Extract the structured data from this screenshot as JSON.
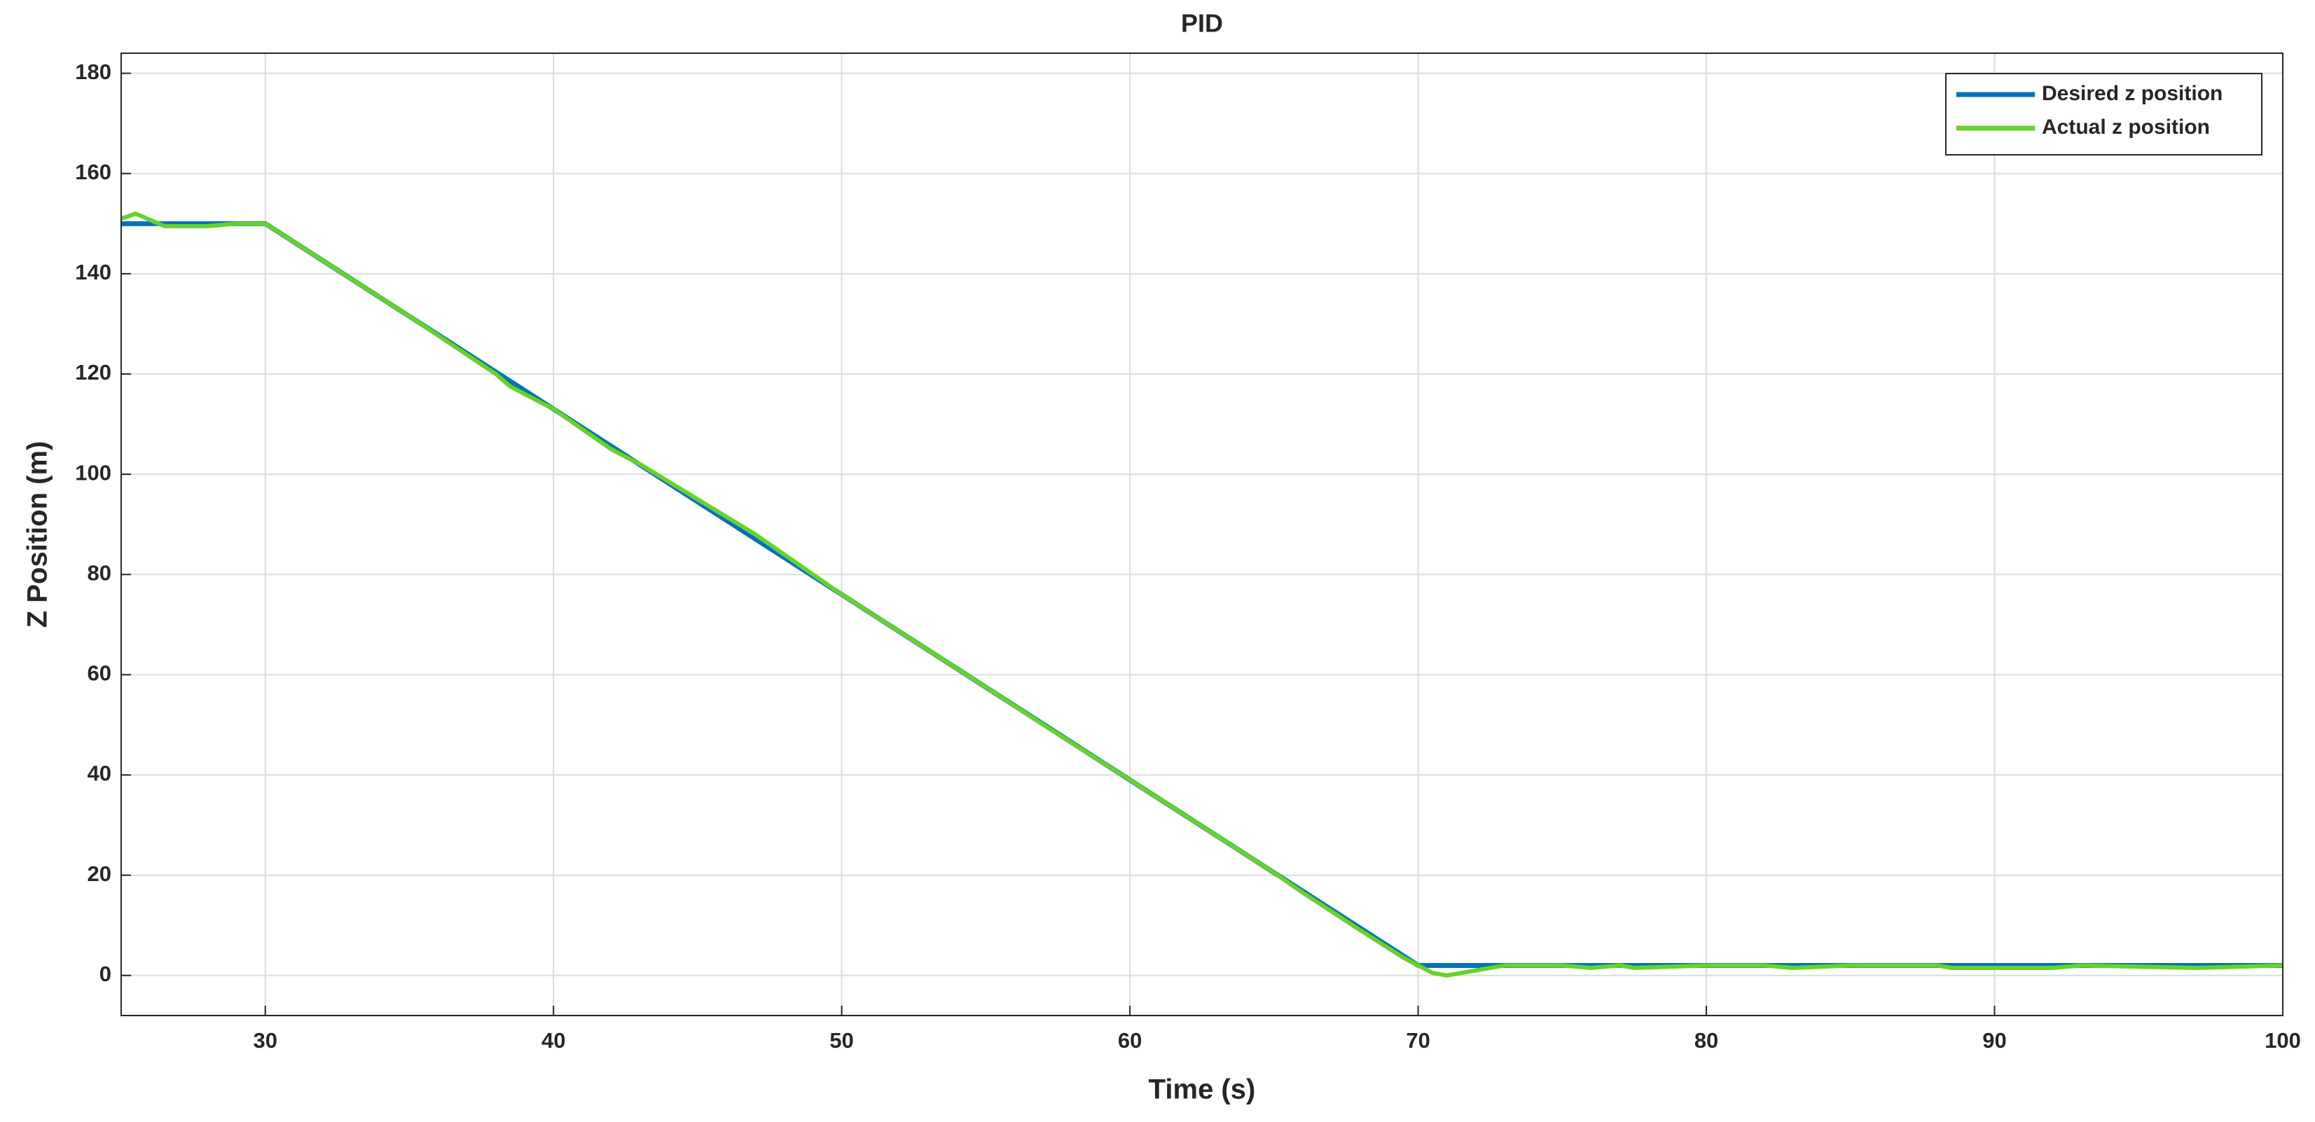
{
  "chart_data": {
    "type": "line",
    "title": "PID",
    "x_label": "Time (s)",
    "y_label": "Z Position (m)",
    "xlim": [
      25,
      100
    ],
    "xticks": [
      30,
      40,
      50,
      60,
      70,
      80,
      90,
      100
    ],
    "ylim": [
      -8,
      184
    ],
    "yticks": [
      0,
      20,
      40,
      60,
      80,
      100,
      120,
      140,
      160,
      180
    ],
    "grid": true,
    "legend": "upper right",
    "series": [
      {
        "name": "Desired z position",
        "color": "#0072bd",
        "x": [
          25,
          30,
          70,
          100
        ],
        "values": [
          150,
          150,
          2,
          2
        ]
      },
      {
        "name": "Actual z position",
        "color": "#66d22a",
        "x": [
          25,
          25.5,
          26.5,
          28,
          29,
          30,
          35,
          38,
          38.5,
          40,
          42,
          43,
          47,
          50,
          55,
          57,
          60,
          65,
          66,
          68,
          69.5,
          70.5,
          71,
          72,
          73,
          75,
          76,
          77,
          77.5,
          80,
          82,
          83,
          85,
          88,
          88.5,
          92,
          93,
          97,
          100
        ],
        "values": [
          151,
          152,
          149.5,
          149.5,
          150,
          150,
          131.5,
          120,
          117.5,
          113,
          105,
          102,
          88,
          76,
          57.5,
          50,
          39,
          20.5,
          16.5,
          9,
          3.5,
          0.5,
          0,
          1,
          2,
          2,
          1.5,
          2,
          1.5,
          2,
          2,
          1.5,
          2,
          2,
          1.5,
          1.5,
          2,
          1.5,
          2
        ]
      }
    ]
  }
}
